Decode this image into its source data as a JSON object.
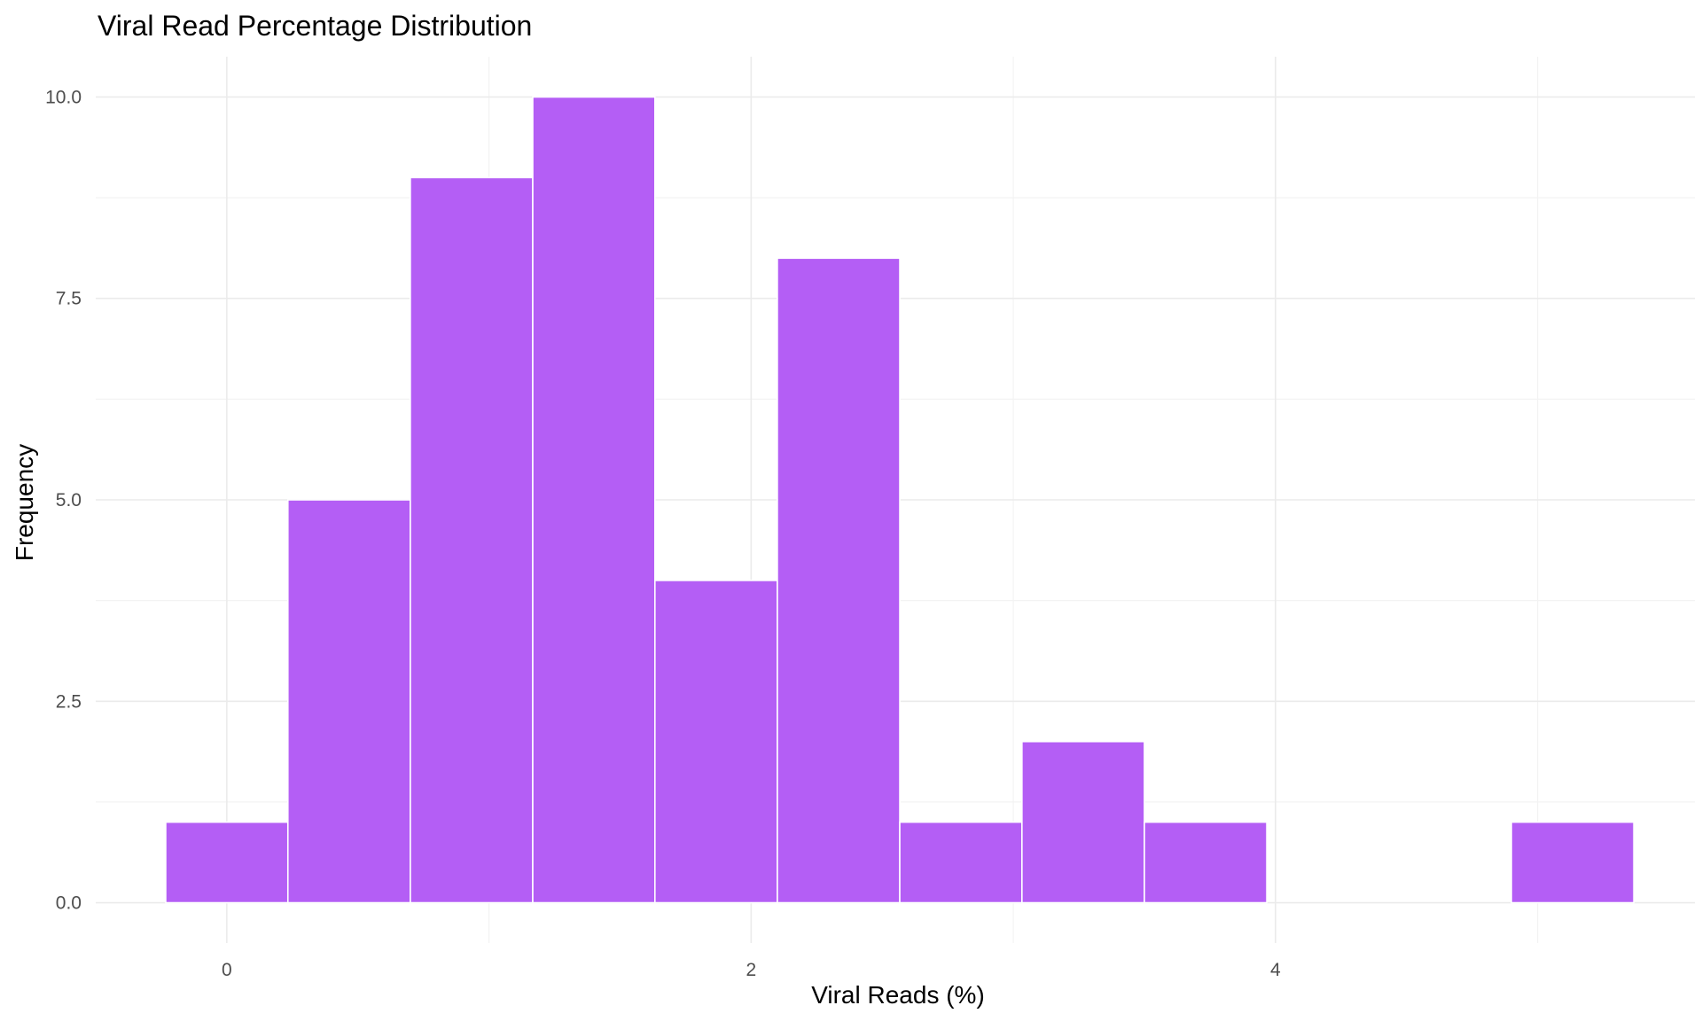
{
  "chart_data": {
    "type": "bar",
    "subtype": "histogram",
    "title": "Viral Read Percentage Distribution",
    "xlabel": "Viral Reads (%)",
    "ylabel": "Frequency",
    "xlim": [
      -0.5,
      5.6
    ],
    "ylim": [
      -0.5,
      10.5
    ],
    "x_ticks": [
      0,
      2,
      4
    ],
    "x_tick_labels": [
      "0",
      "2",
      "4"
    ],
    "x_minor_ticks": [
      1,
      3,
      5
    ],
    "y_ticks": [
      0,
      2.5,
      5,
      7.5,
      10
    ],
    "y_tick_labels": [
      "0.0",
      "2.5",
      "5.0",
      "7.5",
      "10.0"
    ],
    "y_minor_ticks": [
      1.25,
      3.75,
      6.25,
      8.75
    ],
    "grid": true,
    "bar_color": "#b45ef5",
    "bar_border_color": "#ffffff",
    "bins": [
      {
        "x0": -0.233,
        "x1": 0.233,
        "count": 1
      },
      {
        "x0": 0.233,
        "x1": 0.7,
        "count": 5
      },
      {
        "x0": 0.7,
        "x1": 1.167,
        "count": 9
      },
      {
        "x0": 1.167,
        "x1": 1.633,
        "count": 10
      },
      {
        "x0": 1.633,
        "x1": 2.1,
        "count": 4
      },
      {
        "x0": 2.1,
        "x1": 2.567,
        "count": 8
      },
      {
        "x0": 2.567,
        "x1": 3.033,
        "count": 1
      },
      {
        "x0": 3.033,
        "x1": 3.5,
        "count": 2
      },
      {
        "x0": 3.5,
        "x1": 3.967,
        "count": 1
      },
      {
        "x0": 4.9,
        "x1": 5.367,
        "count": 1
      }
    ]
  }
}
